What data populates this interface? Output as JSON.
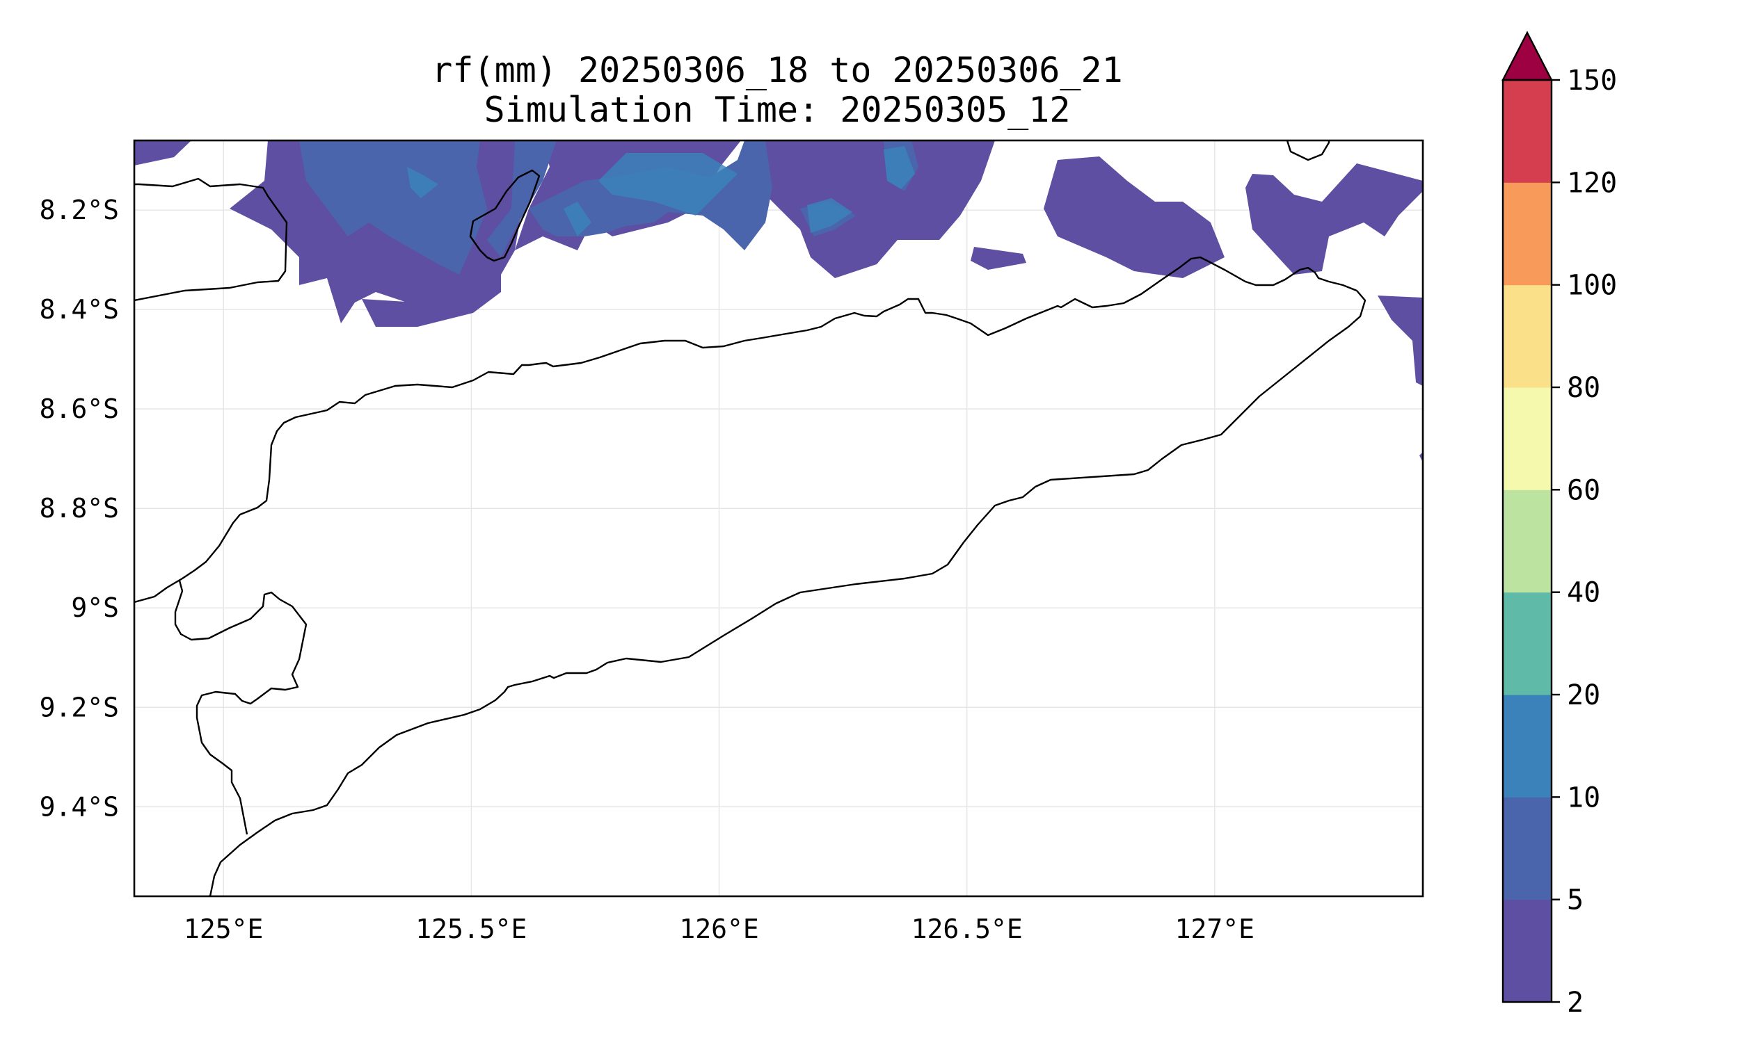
{
  "title": {
    "line1": "rf(mm) 20250306_18 to 20250306_21",
    "line2": "Simulation Time: 20250305_12"
  },
  "map": {
    "lon_range": [
      124.82,
      127.42
    ],
    "lat_range": [
      -9.58,
      -8.06
    ],
    "x_ticks": [
      {
        "value": 125.0,
        "label": "125°E"
      },
      {
        "value": 125.5,
        "label": "125.5°E"
      },
      {
        "value": 126.0,
        "label": "126°E"
      },
      {
        "value": 126.5,
        "label": "126.5°E"
      },
      {
        "value": 127.0,
        "label": "127°E"
      }
    ],
    "y_ticks": [
      {
        "value": -8.2,
        "label": "8.2°S"
      },
      {
        "value": -8.4,
        "label": "8.4°S"
      },
      {
        "value": -8.6,
        "label": "8.6°S"
      },
      {
        "value": -8.8,
        "label": "8.8°S"
      },
      {
        "value": -9.0,
        "label": "9°S"
      },
      {
        "value": -9.2,
        "label": "9.2°S"
      },
      {
        "value": -9.4,
        "label": "9.4°S"
      }
    ],
    "grid": true
  },
  "colorbar": {
    "extend": "max",
    "extend_color": "#9e0142",
    "levels": [
      {
        "label": "2",
        "color": "#5e4fa2"
      },
      {
        "label": "5",
        "color": "#4b65ad"
      },
      {
        "label": "10",
        "color": "#3b82bb"
      },
      {
        "label": "20",
        "color": "#5fbaa8"
      },
      {
        "label": "40",
        "color": "#bde3a1"
      },
      {
        "label": "60",
        "color": "#f4f9ae"
      },
      {
        "label": "80",
        "color": "#fbe08a"
      },
      {
        "label": "100",
        "color": "#f89a5a"
      },
      {
        "label": "120",
        "color": "#d53e4f"
      },
      {
        "label": "150",
        "color": ""
      }
    ]
  }
}
